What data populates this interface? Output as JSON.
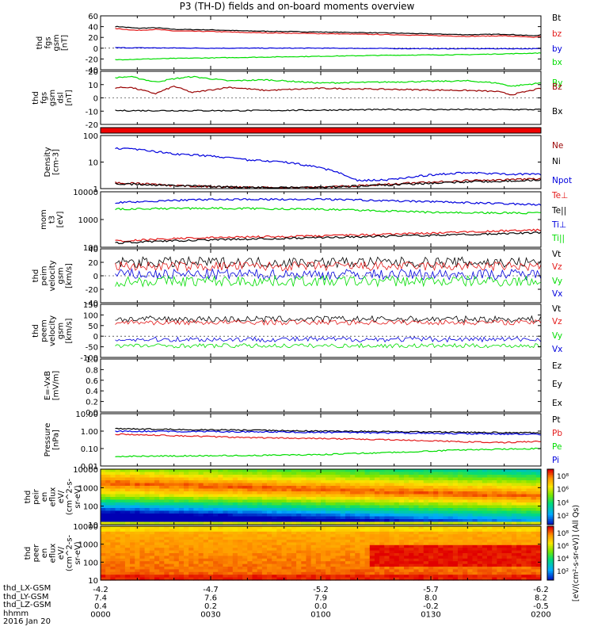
{
  "title": "P3 (TH-D) fields and on-board moments overview",
  "colors": {
    "black": "#000000",
    "red": "#e41a1a",
    "green": "#00dd00",
    "blue": "#0000dd",
    "darkred": "#990000"
  },
  "chart_data": [
    {
      "type": "line",
      "panel": "fgs_gsm",
      "ylabel": [
        "thd",
        "fgs",
        "gsm",
        "[nT]"
      ],
      "ylim": [
        -40,
        60
      ],
      "yticks": [
        "60",
        "40",
        "20",
        "0",
        "-20",
        "-40"
      ],
      "legend": [
        "Bt",
        "bz",
        "by",
        "bx"
      ],
      "series": [
        {
          "name": "Bt",
          "color": "black",
          "x": [
            0,
            5,
            10,
            15,
            20,
            30,
            40,
            60,
            80,
            100,
            110,
            118,
            120
          ],
          "y": [
            41,
            40,
            37,
            38,
            35,
            34,
            32,
            30,
            28,
            25,
            26,
            23,
            25
          ]
        },
        {
          "name": "bz",
          "color": "red",
          "x": [
            0,
            5,
            10,
            15,
            20,
            30,
            40,
            60,
            80,
            100,
            110,
            118,
            120
          ],
          "y": [
            37,
            36,
            33,
            35,
            32,
            31,
            29,
            27,
            25,
            22,
            23,
            20,
            22
          ]
        },
        {
          "name": "by",
          "color": "blue",
          "x": [
            0,
            30,
            60,
            90,
            120
          ],
          "y": [
            1,
            0,
            0,
            -1,
            -1
          ]
        },
        {
          "name": "bx",
          "color": "green",
          "x": [
            0,
            20,
            40,
            60,
            80,
            100,
            120
          ],
          "y": [
            -22,
            -19,
            -17,
            -15,
            -13,
            -12,
            -9
          ]
        }
      ]
    },
    {
      "type": "line",
      "panel": "fgs_gsm_dsl",
      "ylabel": [
        "thd",
        "fgs",
        "gsm",
        "dsl",
        "[nT]"
      ],
      "ylim": [
        -25,
        25
      ],
      "yticks": [
        "20",
        "10",
        "0",
        "-10",
        "-20"
      ],
      "legend": [
        "By",
        "Bz",
        "Bx"
      ],
      "series": [
        {
          "name": "By",
          "color": "green",
          "x": [
            0,
            8,
            15,
            20,
            25,
            35,
            45,
            60,
            80,
            100,
            108,
            112,
            120
          ],
          "y": [
            18,
            20,
            15,
            18,
            20,
            16,
            17,
            14,
            15,
            16,
            14,
            11,
            14
          ]
        },
        {
          "name": "Bz",
          "color": "darkred",
          "x": [
            0,
            8,
            15,
            20,
            25,
            35,
            45,
            60,
            80,
            100,
            108,
            112,
            120
          ],
          "y": [
            9,
            10,
            4,
            11,
            5,
            10,
            7,
            9,
            8,
            7,
            6,
            3,
            9
          ]
        },
        {
          "name": "Bx",
          "color": "black",
          "x": [
            0,
            40,
            80,
            120
          ],
          "y": [
            -12,
            -12,
            -11,
            -11
          ]
        }
      ]
    },
    {
      "type": "line",
      "panel": "density",
      "ylabel": [
        "Density",
        "[cm-3]"
      ],
      "yscale": "log",
      "ylim": [
        1,
        100
      ],
      "yticks": [
        "100",
        "10",
        "1"
      ],
      "legend": [
        "Ne",
        "Ni",
        "Npot"
      ],
      "series": [
        {
          "name": "Ne",
          "color": "darkred",
          "x": [
            0,
            20,
            40,
            60,
            80,
            100,
            120
          ],
          "y": [
            1.8,
            1.3,
            1.1,
            1.1,
            1.5,
            2.0,
            2.3
          ]
        },
        {
          "name": "Ni",
          "color": "black",
          "x": [
            0,
            20,
            40,
            60,
            80,
            100,
            120
          ],
          "y": [
            1.6,
            1.3,
            1.1,
            1.1,
            1.4,
            1.8,
            2.1
          ]
        },
        {
          "name": "Npot",
          "color": "blue",
          "x": [
            0,
            10,
            20,
            30,
            40,
            50,
            60,
            70,
            80,
            90,
            100,
            110,
            120
          ],
          "y": [
            35,
            30,
            20,
            17,
            12,
            10,
            6,
            2,
            2.2,
            3.3,
            4,
            3.5,
            3.5
          ]
        }
      ]
    },
    {
      "type": "line",
      "panel": "mom_temp",
      "ylabel": [
        "mom",
        "t3",
        "[eV]"
      ],
      "yscale": "log",
      "ylim": [
        60,
        10000
      ],
      "yticks": [
        "10000",
        "1000",
        "100"
      ],
      "legend": [
        "Te⊥",
        "Te||",
        "Ti⊥",
        "Ti||"
      ],
      "series": [
        {
          "name": "Ti⊥",
          "color": "blue",
          "x": [
            0,
            30,
            60,
            90,
            120
          ],
          "y": [
            3500,
            5000,
            5000,
            4000,
            3000
          ]
        },
        {
          "name": "Ti||",
          "color": "green",
          "x": [
            0,
            30,
            60,
            90,
            120
          ],
          "y": [
            2000,
            2200,
            2000,
            1500,
            1400
          ]
        },
        {
          "name": "Te⊥",
          "color": "red",
          "x": [
            0,
            30,
            60,
            90,
            120
          ],
          "y": [
            100,
            150,
            170,
            220,
            300
          ]
        },
        {
          "name": "Te||",
          "color": "black",
          "x": [
            0,
            30,
            60,
            90,
            120
          ],
          "y": [
            85,
            120,
            145,
            180,
            230
          ]
        }
      ]
    },
    {
      "type": "line",
      "panel": "peim_velocity",
      "ylabel": [
        "thd",
        "peim",
        "velocity",
        "gsm",
        "[km/s]"
      ],
      "ylim": [
        -40,
        40
      ],
      "yticks": [
        "40",
        "20",
        "0",
        "-20",
        "-40"
      ],
      "legend": [
        "Vt",
        "Vz",
        "Vy",
        "Vx"
      ],
      "series": [
        {
          "name": "Vt",
          "color": "black",
          "base": 20,
          "noise": 8
        },
        {
          "name": "Vz",
          "color": "red",
          "base": 14,
          "noise": 7
        },
        {
          "name": "Vx",
          "color": "blue",
          "base": 2,
          "noise": 8
        },
        {
          "name": "Vy",
          "color": "green",
          "base": -8,
          "noise": 8
        }
      ]
    },
    {
      "type": "line",
      "panel": "peem_velocity",
      "ylabel": [
        "thd",
        "peem",
        "velocity",
        "gsm",
        "[km/s]"
      ],
      "ylim": [
        -100,
        150
      ],
      "yticks": [
        "150",
        "100",
        "50",
        "0",
        "-50",
        "-100"
      ],
      "legend": [
        "Vt",
        "Vz",
        "Vy",
        "Vx"
      ],
      "series": [
        {
          "name": "Vt",
          "color": "black",
          "base": 80,
          "noise": 15
        },
        {
          "name": "Vz",
          "color": "red",
          "base": 65,
          "noise": 12
        },
        {
          "name": "Vx",
          "color": "blue",
          "base": -15,
          "noise": 12
        },
        {
          "name": "Vy",
          "color": "green",
          "base": -45,
          "noise": 10
        }
      ]
    },
    {
      "type": "line",
      "panel": "efield",
      "ylabel": [
        "E=-VxB",
        "[mV/m]"
      ],
      "ylim": [
        0,
        1
      ],
      "yticks": [
        "1.0",
        "0.8",
        "0.6",
        "0.4",
        "0.2",
        "0.0"
      ],
      "legend": [
        "Ez",
        "Ey",
        "Ex"
      ],
      "series": []
    },
    {
      "type": "line",
      "panel": "pressure",
      "ylabel": [
        "Pressure",
        "[nPa]"
      ],
      "yscale": "log",
      "ylim": [
        0.01,
        10
      ],
      "yticks": [
        "10.00",
        "1.00",
        "0.10",
        "0.01"
      ],
      "legend": [
        "Pt",
        "Pb",
        "Pe",
        "Pi"
      ],
      "series": [
        {
          "name": "Pt",
          "color": "black",
          "x": [
            0,
            30,
            60,
            90,
            120
          ],
          "y": [
            1.4,
            1.2,
            1.0,
            0.9,
            0.8
          ]
        },
        {
          "name": "Pi",
          "color": "blue",
          "x": [
            0,
            30,
            60,
            90,
            120
          ],
          "y": [
            1.0,
            0.95,
            0.85,
            0.75,
            0.65
          ]
        },
        {
          "name": "Pb",
          "color": "red",
          "x": [
            0,
            20,
            40,
            60,
            80,
            100,
            110,
            120
          ],
          "y": [
            0.7,
            0.55,
            0.42,
            0.38,
            0.32,
            0.24,
            0.22,
            0.26
          ]
        },
        {
          "name": "Pe",
          "color": "green",
          "x": [
            0,
            20,
            40,
            60,
            80,
            100,
            120
          ],
          "y": [
            0.035,
            0.038,
            0.04,
            0.045,
            0.06,
            0.085,
            0.1
          ]
        }
      ]
    },
    {
      "type": "heatmap",
      "panel": "peir_eflux",
      "ylabel": [
        "thd",
        "peir",
        "en",
        "eflux",
        "eV/",
        "(cm^2-s-",
        "sr-eV)"
      ],
      "yscale": "log",
      "ylim": [
        5,
        30000
      ],
      "yticks": [
        "10000",
        "1000",
        "100",
        "10"
      ]
    },
    {
      "type": "heatmap",
      "panel": "peer_eflux",
      "ylabel": [
        "thd",
        "peer",
        "en",
        "eflux",
        "eV/",
        "(cm^2-s-",
        "sr-eV)"
      ],
      "yscale": "log",
      "ylim": [
        5,
        30000
      ],
      "yticks": [
        "10000",
        "1000",
        "100",
        "10"
      ]
    }
  ],
  "colorbar": {
    "label": "[eV/(cm²-s-sr-eV)] (All Qs)",
    "ticks": [
      "10⁸",
      "10⁶",
      "10⁴",
      "10²"
    ]
  },
  "ephemeris": {
    "labels": [
      "thd_LX-GSM",
      "thd_LY-GSM",
      "thd_LZ-GSM",
      "hhmm",
      "2016 Jan 20"
    ],
    "columns": [
      {
        "x": 0,
        "LX": "-4.2",
        "LY": "7.4",
        "LZ": "0.4",
        "hhmm": "0000"
      },
      {
        "x": 30,
        "LX": "-4.7",
        "LY": "7.6",
        "LZ": "0.2",
        "hhmm": "0030"
      },
      {
        "x": 60,
        "LX": "-5.2",
        "LY": "7.9",
        "LZ": "0.0",
        "hhmm": "0100"
      },
      {
        "x": 90,
        "LX": "-5.7",
        "LY": "8.0",
        "LZ": "-0.2",
        "hhmm": "0130"
      },
      {
        "x": 120,
        "LX": "-6.2",
        "LY": "8.2",
        "LZ": "-0.5",
        "hhmm": "0200"
      }
    ]
  }
}
